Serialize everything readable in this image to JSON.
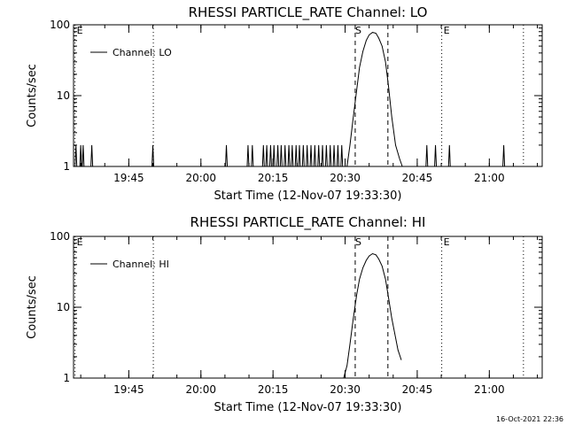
{
  "chart_data": [
    {
      "type": "line",
      "title": "RHESSI PARTICLE_RATE Channel: LO",
      "xlabel": "Start Time (12-Nov-07 19:33:30)",
      "ylabel": "Counts/sec",
      "y_scale": "log",
      "ylim": [
        1,
        100
      ],
      "y_ticks": [
        "1",
        "10",
        "100"
      ],
      "x_unit": "minutes after 19:33:30",
      "xlim": [
        0,
        97.5
      ],
      "x_ticks": [
        {
          "label": "19:45",
          "t": 11.5
        },
        {
          "label": "20:00",
          "t": 26.5
        },
        {
          "label": "20:15",
          "t": 41.5
        },
        {
          "label": "20:30",
          "t": 56.5
        },
        {
          "label": "20:45",
          "t": 71.5
        },
        {
          "label": "21:00",
          "t": 86.5
        }
      ],
      "grid": false,
      "legend_position": "top-left",
      "series": [
        {
          "name": "Channel: LO",
          "spikes": [
            0.5,
            1.5,
            2.0,
            3.8,
            16.5,
            31.8,
            36.3,
            37.2,
            39.5,
            40.2,
            41.0,
            41.7,
            42.5,
            43.2,
            44.0,
            44.8,
            45.5,
            46.3,
            47.0,
            47.8,
            48.6,
            49.4,
            50.2,
            51.0,
            51.8,
            52.6,
            53.4,
            54.2,
            55.0,
            55.8,
            73.5,
            75.3,
            78.2,
            89.5
          ],
          "x": [
            56.9,
            57.5,
            58.2,
            58.9,
            59.5,
            60.2,
            60.9,
            61.5,
            62.2,
            62.9,
            63.5,
            64.2,
            64.9,
            65.5,
            66.2,
            67.0,
            67.8,
            68.4
          ],
          "y": [
            1.0,
            2.0,
            5.0,
            12,
            25,
            42,
            60,
            72,
            78,
            76,
            65,
            50,
            30,
            14,
            5,
            2.0,
            1.3,
            1.0
          ]
        }
      ],
      "vlines_dashed": [
        {
          "label": "S",
          "t": 58.6
        },
        {
          "label": "",
          "t": 65.4
        }
      ],
      "vlines_dotted": [
        {
          "label": "E",
          "t": 0.3
        },
        {
          "label": "",
          "t": 16.6
        },
        {
          "label": "E",
          "t": 76.6
        },
        {
          "label": "",
          "t": 93.6
        }
      ]
    },
    {
      "type": "line",
      "title": "RHESSI PARTICLE_RATE Channel: HI",
      "xlabel": "Start Time (12-Nov-07 19:33:30)",
      "ylabel": "Counts/sec",
      "y_scale": "log",
      "ylim": [
        1,
        100
      ],
      "y_ticks": [
        "1",
        "10",
        "100"
      ],
      "x_unit": "minutes after 19:33:30",
      "xlim": [
        0,
        97.5
      ],
      "x_ticks": [
        {
          "label": "19:45",
          "t": 11.5
        },
        {
          "label": "20:00",
          "t": 26.5
        },
        {
          "label": "20:15",
          "t": 41.5
        },
        {
          "label": "20:30",
          "t": 56.5
        },
        {
          "label": "20:45",
          "t": 71.5
        },
        {
          "label": "21:00",
          "t": 86.5
        }
      ],
      "grid": false,
      "legend_position": "top-left",
      "series": [
        {
          "name": "Channel: HI",
          "spikes": [],
          "x": [
            56.2,
            56.9,
            57.5,
            58.2,
            58.9,
            59.5,
            60.2,
            60.9,
            61.5,
            62.2,
            62.9,
            63.5,
            64.2,
            64.9,
            65.5,
            66.2,
            66.9,
            67.5,
            68.2
          ],
          "y": [
            1.0,
            1.5,
            3.0,
            7.0,
            15,
            25,
            36,
            46,
            53,
            57,
            55,
            48,
            38,
            25,
            14,
            7,
            4,
            2.5,
            1.8
          ]
        }
      ],
      "vlines_dashed": [
        {
          "label": "S",
          "t": 58.6
        },
        {
          "label": "",
          "t": 65.4
        }
      ],
      "vlines_dotted": [
        {
          "label": "E",
          "t": 0.3
        },
        {
          "label": "",
          "t": 16.6
        },
        {
          "label": "E",
          "t": 76.6
        },
        {
          "label": "",
          "t": 93.6
        }
      ]
    }
  ],
  "footer": {
    "timestamp": "16-Oct-2021 22:36"
  },
  "colors": {
    "background": "#ffffff",
    "foreground": "#000000"
  }
}
